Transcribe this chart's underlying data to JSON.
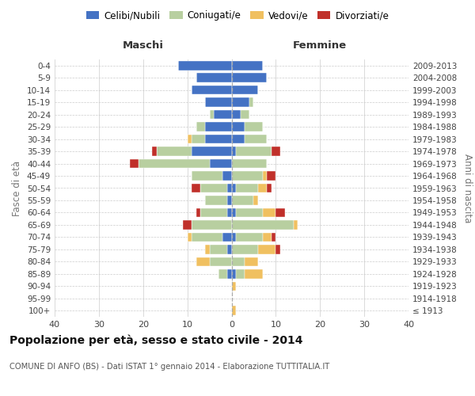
{
  "age_groups": [
    "100+",
    "95-99",
    "90-94",
    "85-89",
    "80-84",
    "75-79",
    "70-74",
    "65-69",
    "60-64",
    "55-59",
    "50-54",
    "45-49",
    "40-44",
    "35-39",
    "30-34",
    "25-29",
    "20-24",
    "15-19",
    "10-14",
    "5-9",
    "0-4"
  ],
  "birth_years": [
    "≤ 1913",
    "1914-1918",
    "1919-1923",
    "1924-1928",
    "1929-1933",
    "1934-1938",
    "1939-1943",
    "1944-1948",
    "1949-1953",
    "1954-1958",
    "1959-1963",
    "1964-1968",
    "1969-1973",
    "1974-1978",
    "1979-1983",
    "1984-1988",
    "1989-1993",
    "1994-1998",
    "1999-2003",
    "2004-2008",
    "2009-2013"
  ],
  "males": {
    "celibi": [
      0,
      0,
      0,
      1,
      0,
      1,
      2,
      0,
      1,
      1,
      1,
      2,
      5,
      9,
      6,
      6,
      4,
      6,
      9,
      8,
      12
    ],
    "coniugati": [
      0,
      0,
      0,
      2,
      5,
      4,
      7,
      9,
      6,
      5,
      6,
      7,
      16,
      8,
      3,
      2,
      1,
      0,
      0,
      0,
      0
    ],
    "vedovi": [
      0,
      0,
      0,
      0,
      3,
      1,
      1,
      0,
      0,
      0,
      0,
      0,
      0,
      0,
      1,
      0,
      0,
      0,
      0,
      0,
      0
    ],
    "divorziati": [
      0,
      0,
      0,
      0,
      0,
      0,
      0,
      2,
      1,
      0,
      2,
      0,
      2,
      1,
      0,
      0,
      0,
      0,
      0,
      0,
      0
    ]
  },
  "females": {
    "nubili": [
      0,
      0,
      0,
      1,
      0,
      0,
      1,
      0,
      1,
      0,
      1,
      0,
      0,
      1,
      3,
      3,
      2,
      4,
      6,
      8,
      7
    ],
    "coniugate": [
      0,
      0,
      0,
      2,
      3,
      6,
      6,
      14,
      6,
      5,
      5,
      7,
      8,
      8,
      5,
      4,
      2,
      1,
      0,
      0,
      0
    ],
    "vedove": [
      1,
      0,
      1,
      4,
      3,
      4,
      2,
      1,
      3,
      1,
      2,
      1,
      0,
      0,
      0,
      0,
      0,
      0,
      0,
      0,
      0
    ],
    "divorziate": [
      0,
      0,
      0,
      0,
      0,
      1,
      1,
      0,
      2,
      0,
      1,
      2,
      0,
      2,
      0,
      0,
      0,
      0,
      0,
      0,
      0
    ]
  },
  "colors": {
    "celibi_nubili": "#4472c4",
    "coniugati": "#b8cfa0",
    "vedovi": "#f0c060",
    "divorziati": "#c0302a"
  },
  "xlim": 40,
  "title": "Popolazione per età, sesso e stato civile - 2014",
  "subtitle": "COMUNE DI ANFO (BS) - Dati ISTAT 1° gennaio 2014 - Elaborazione TUTTITALIA.IT",
  "ylabel_left": "Fasce di età",
  "ylabel_right": "Anni di nascita",
  "xlabel_maschi": "Maschi",
  "xlabel_femmine": "Femmine",
  "legend_labels": [
    "Celibi/Nubili",
    "Coniugati/e",
    "Vedovi/e",
    "Divorziati/e"
  ],
  "bg_color": "#ffffff",
  "grid_color": "#cccccc",
  "bar_height": 0.75
}
